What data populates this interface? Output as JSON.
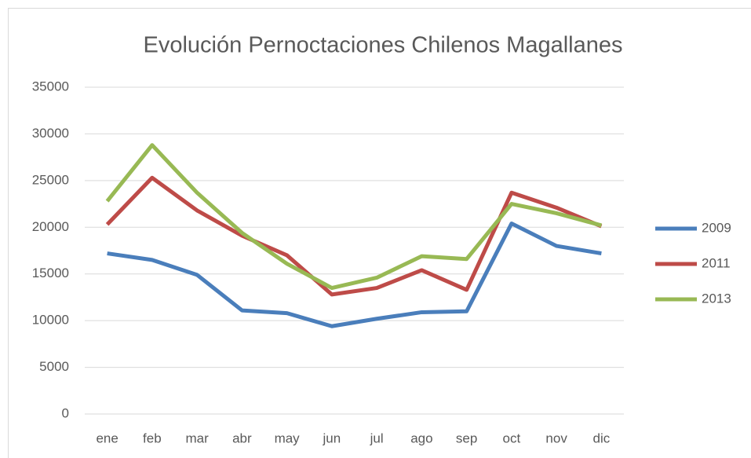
{
  "chart_data": {
    "type": "line",
    "title": "Evolución Pernoctaciones Chilenos Magallanes",
    "categories": [
      "ene",
      "feb",
      "mar",
      "abr",
      "may",
      "jun",
      "jul",
      "ago",
      "sep",
      "oct",
      "nov",
      "dic"
    ],
    "series": [
      {
        "name": "2009",
        "color": "#4a7ebb",
        "values": [
          17200,
          16500,
          14900,
          11100,
          10800,
          9400,
          10200,
          10900,
          11000,
          20400,
          18000,
          17200
        ]
      },
      {
        "name": "2011",
        "color": "#be4b48",
        "values": [
          20300,
          25300,
          21800,
          19100,
          17000,
          12800,
          13500,
          15400,
          13300,
          23700,
          22100,
          20100
        ]
      },
      {
        "name": "2013",
        "color": "#98b954",
        "values": [
          22800,
          28800,
          23700,
          19400,
          16100,
          13500,
          14600,
          16900,
          16600,
          22500,
          21500,
          20200
        ]
      }
    ],
    "ylim": [
      0,
      35000
    ],
    "yticks": [
      0,
      5000,
      10000,
      15000,
      20000,
      25000,
      30000,
      35000
    ],
    "grid": true,
    "legend": "right"
  }
}
